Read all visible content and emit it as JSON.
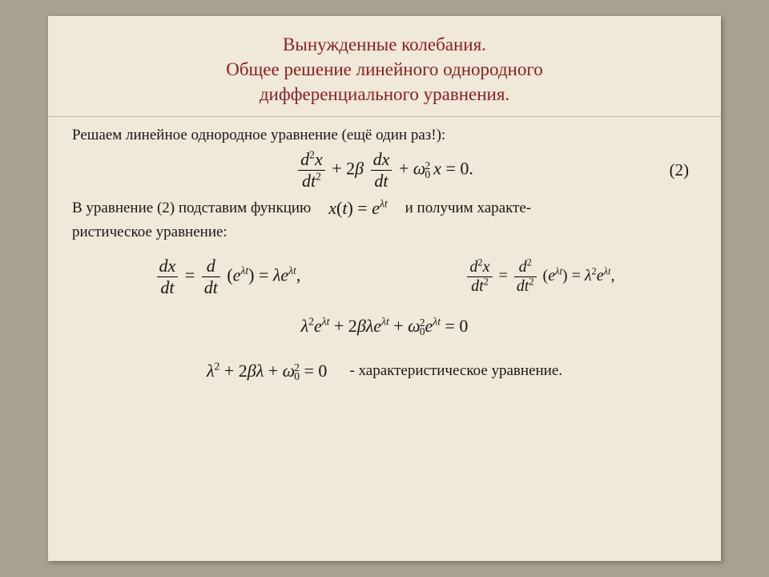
{
  "background_color": "#a8a090",
  "slide_background": "#f0e8d8",
  "title_color": "#8a2020",
  "text_color": "#1a1614",
  "font_family": "Times New Roman",
  "title": {
    "line1": "Вынужденные колебания.",
    "line2": "Общее решение линейного однородного",
    "line3": "дифференциального уравнения."
  },
  "body": {
    "intro": "Решаем линейное однородное уравнение (ещё один раз!):",
    "eq_number": "(2)",
    "subst_prefix": "В уравнение (2) подставим функцию",
    "subst_suffix": "и получим характе-",
    "subst_line2": "ристическое уравнение:",
    "char_label": "- характеристическое уравнение."
  },
  "math": {
    "eq2_latex": "d^2x/dt^2 + 2β dx/dt + ω_0^2 x = 0.",
    "ansatz_latex": "x(t) = e^{λt}",
    "deriv1_latex": "dx/dt = d/dt(e^{λt}) = λ e^{λt},",
    "deriv2_latex": "d^2x/dt^2 = d^2/dt^2(e^{λt}) = λ^2 e^{λt},",
    "sub_eq_latex": "λ^2 e^{λt} + 2βλ e^{λt} + ω_0^2 e^{λt} = 0",
    "char_eq_latex": "λ^2 + 2βλ + ω_0^2 = 0"
  }
}
